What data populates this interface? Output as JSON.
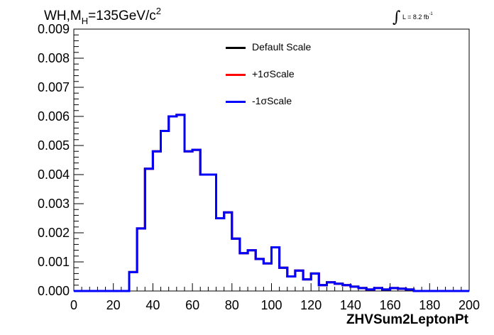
{
  "title": {
    "pre": "WH,M",
    "sub": "H",
    "post": "=135GeV/c",
    "sup": "2"
  },
  "lumi": {
    "integral": "∫",
    "text": "L = 8.2 fb",
    "sup": "-1"
  },
  "legend": [
    {
      "label": "Default Scale",
      "color": "#000000"
    },
    {
      "label": "+1σScale",
      "color": "#ff0000"
    },
    {
      "label": "-1σScale",
      "color": "#0000ff"
    }
  ],
  "chart_data": {
    "type": "line",
    "step": true,
    "title": "WH,M_H=135GeV/c^2",
    "xlabel": "ZHVSum2LeptonPt",
    "ylabel": "",
    "xlim": [
      0,
      200
    ],
    "ylim": [
      0,
      0.009
    ],
    "xticks": [
      "0",
      "20",
      "40",
      "60",
      "80",
      "100",
      "120",
      "140",
      "160",
      "180",
      "200"
    ],
    "yticks": [
      "0.000",
      "0.001",
      "0.002",
      "0.003",
      "0.004",
      "0.005",
      "0.006",
      "0.007",
      "0.008",
      "0.009"
    ],
    "bin_edges": [
      0,
      4,
      8,
      12,
      16,
      20,
      24,
      28,
      32,
      36,
      40,
      44,
      48,
      52,
      56,
      60,
      64,
      68,
      72,
      76,
      80,
      84,
      88,
      92,
      96,
      100,
      104,
      108,
      112,
      116,
      120,
      124,
      128,
      132,
      136,
      140,
      144,
      148,
      152,
      156,
      160,
      164,
      168,
      172,
      176,
      180,
      184,
      188,
      192,
      196,
      200
    ],
    "series": [
      {
        "name": "Default Scale",
        "color": "#000000",
        "values": [
          0,
          0,
          0,
          0,
          0,
          0,
          0,
          0.00065,
          0.00215,
          0.0042,
          0.0048,
          0.0055,
          0.006,
          0.00605,
          0.0048,
          0.00485,
          0.004,
          0.004,
          0.0025,
          0.0027,
          0.0018,
          0.0013,
          0.0014,
          0.0011,
          0.00095,
          0.0015,
          0.0008,
          0.0005,
          0.0007,
          0.0004,
          0.0006,
          0.0002,
          0.0003,
          0.00025,
          0.0002,
          0.00015,
          0.0001,
          5e-05,
          0.0001,
          5e-05,
          0.0001,
          8e-05,
          5e-05,
          0,
          0,
          0,
          0,
          0,
          0,
          0
        ]
      },
      {
        "name": "+1σScale",
        "color": "#ff0000",
        "values": [
          0,
          0,
          0,
          0,
          0,
          0,
          0,
          0.00065,
          0.00215,
          0.0042,
          0.0048,
          0.0055,
          0.006,
          0.00605,
          0.0048,
          0.00485,
          0.004,
          0.004,
          0.0025,
          0.0027,
          0.0018,
          0.0013,
          0.0014,
          0.0011,
          0.00095,
          0.0015,
          0.0008,
          0.0005,
          0.0007,
          0.0004,
          0.0006,
          0.0002,
          0.0003,
          0.00025,
          0.0002,
          0.00015,
          0.0001,
          5e-05,
          0.0001,
          5e-05,
          0.0001,
          8e-05,
          5e-05,
          0,
          0,
          0,
          0,
          0,
          0,
          0
        ]
      },
      {
        "name": "-1σScale",
        "color": "#0000ff",
        "values": [
          0,
          0,
          0,
          0,
          0,
          0,
          0,
          0.00065,
          0.00215,
          0.0042,
          0.0048,
          0.0055,
          0.006,
          0.00605,
          0.0048,
          0.00485,
          0.004,
          0.004,
          0.0025,
          0.0027,
          0.0018,
          0.0013,
          0.0014,
          0.0011,
          0.00095,
          0.0015,
          0.0008,
          0.0005,
          0.0007,
          0.0004,
          0.0006,
          0.0002,
          0.0003,
          0.00025,
          0.0002,
          0.00015,
          0.0001,
          5e-05,
          0.0001,
          5e-05,
          0.0001,
          8e-05,
          5e-05,
          0,
          0,
          0,
          0,
          0,
          0,
          0
        ]
      }
    ],
    "grid": false,
    "legend_position": "top-center"
  }
}
